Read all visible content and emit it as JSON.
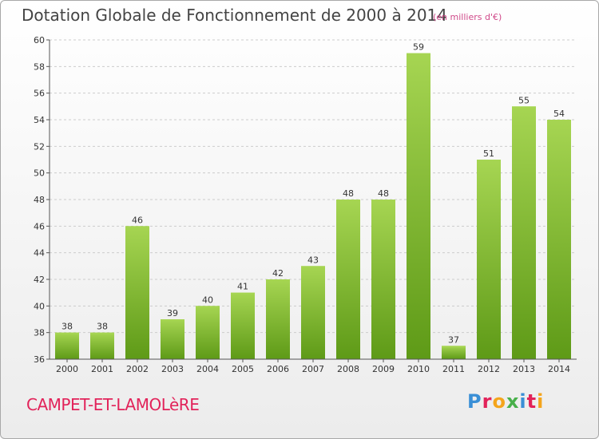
{
  "title": "Dotation Globale de Fonctionnement de 2000 à 2014",
  "subtitle": "(en milliers d'€)",
  "commune": "CAMPET-ET-LAMOLèRE",
  "logo": {
    "text": "Proxiti",
    "colors": [
      "#3a8fd6",
      "#e2235a",
      "#f4a51c",
      "#48b04a",
      "#3a8fd6",
      "#e2235a",
      "#f4a51c"
    ]
  },
  "colors": {
    "bar_top": "#a6d552",
    "bar_bottom": "#5e9a17",
    "axis": "#555555",
    "grid": "#cccccc"
  },
  "chart_data": {
    "type": "bar",
    "title": "Dotation Globale de Fonctionnement de 2000 à 2014",
    "subtitle": "(en milliers d'€)",
    "xlabel": "",
    "ylabel": "",
    "categories": [
      "2000",
      "2001",
      "2002",
      "2003",
      "2004",
      "2005",
      "2006",
      "2007",
      "2008",
      "2009",
      "2010",
      "2011",
      "2012",
      "2013",
      "2014"
    ],
    "values": [
      38,
      38,
      46,
      39,
      40,
      41,
      42,
      43,
      48,
      48,
      59,
      37,
      51,
      55,
      54
    ],
    "ylim": [
      36,
      60
    ],
    "yticks": [
      36,
      38,
      40,
      42,
      44,
      46,
      48,
      50,
      52,
      54,
      56,
      58,
      60
    ],
    "grid": true,
    "data_labels": true
  }
}
